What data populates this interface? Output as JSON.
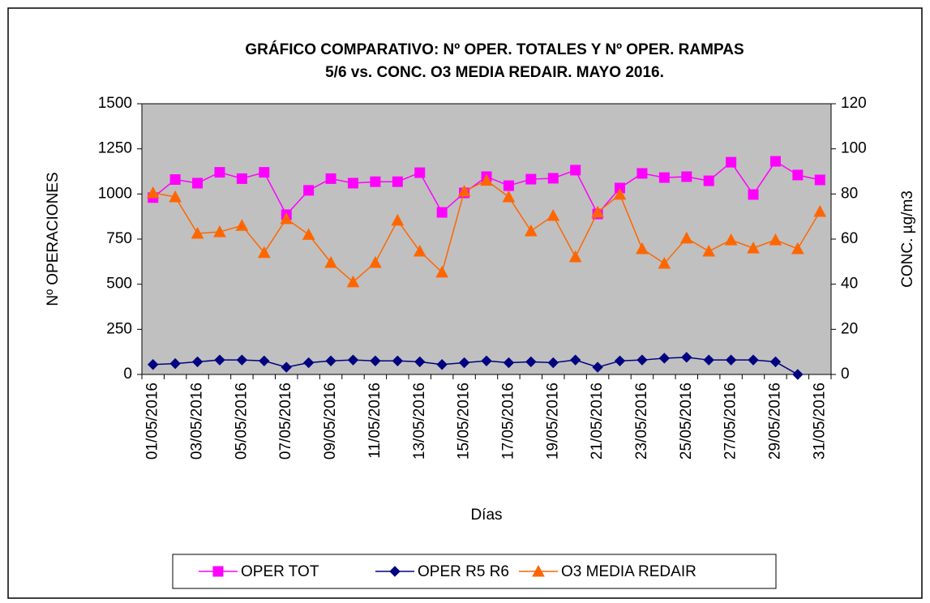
{
  "chart_data": {
    "type": "line",
    "title": [
      "GRÁFICO COMPARATIVO:  Nº OPER. TOTALES Y Nº OPER. RAMPAS",
      "5/6 vs. CONC.  O3 MEDIA REDAIR.  MAYO 2016."
    ],
    "x_label": "Días",
    "y_label": "Nº OPERACIONES",
    "y2_label": "CONC.  µg/m3",
    "categories": [
      "01/05/2016",
      null,
      "03/05/2016",
      null,
      "05/05/2016",
      null,
      "07/05/2016",
      null,
      "09/05/2016",
      null,
      "11/05/2016",
      null,
      "13/05/2016",
      null,
      "15/05/2016",
      null,
      "17/05/2016",
      null,
      "19/05/2016",
      null,
      "21/05/2016",
      null,
      "23/05/2016",
      null,
      "25/05/2016",
      null,
      "27/05/2016",
      null,
      "29/05/2016",
      null,
      "31/05/2016"
    ],
    "ylim": [
      0,
      1500
    ],
    "yticks": [
      0,
      250,
      500,
      750,
      1000,
      1250,
      1500
    ],
    "y2lim": [
      0,
      120
    ],
    "y2ticks": [
      0,
      20,
      40,
      60,
      80,
      100,
      120
    ],
    "legend": "bottom",
    "series": [
      {
        "name": "OPER TOT",
        "color": "#ff00ff",
        "marker": "square",
        "values": [
          980,
          1080,
          1060,
          1120,
          1085,
          1120,
          885,
          1020,
          1085,
          1060,
          1068,
          1068,
          1118,
          898,
          1006,
          1096,
          1046,
          1082,
          1087,
          1132,
          889,
          1033,
          1114,
          1091,
          1096,
          1073,
          1176,
          997,
          1181,
          1105,
          1078
        ]
      },
      {
        "name": "OPER R5 R6",
        "color": "#000080",
        "marker": "diamond",
        "values": [
          55,
          60,
          70,
          80,
          80,
          75,
          40,
          65,
          75,
          80,
          75,
          75,
          70,
          55,
          65,
          75,
          65,
          70,
          65,
          80,
          40,
          75,
          80,
          90,
          95,
          80,
          80,
          80,
          70,
          0,
          null
        ]
      },
      {
        "name": "O3 MEDIA REDAIR",
        "color": "#ff6600",
        "marker": "triangle",
        "axis": "y2",
        "values": [
          80.5,
          78.7,
          62.5,
          63.2,
          66,
          54,
          69,
          62,
          49.6,
          41,
          49.6,
          68.3,
          54.6,
          45.3,
          81.2,
          86,
          78.7,
          63.6,
          70.4,
          52.1,
          71.9,
          79.8,
          55.7,
          49.2,
          60.4,
          54.6,
          59.6,
          56,
          59.6,
          55.7,
          72.2
        ]
      }
    ]
  }
}
